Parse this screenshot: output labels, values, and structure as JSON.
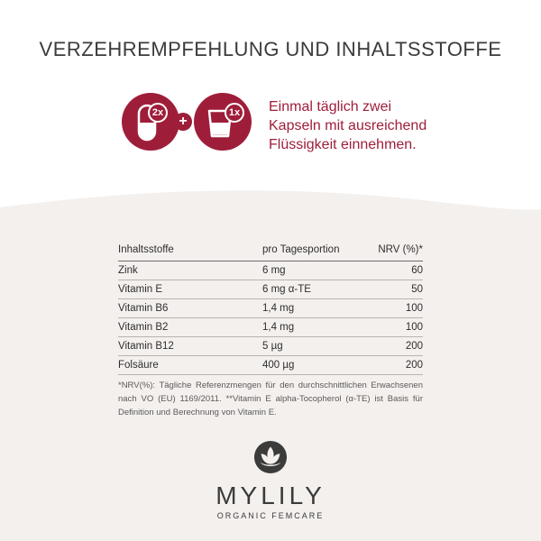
{
  "header": {
    "title": "VERZEHREMPFEHLUNG UND INHALTSSTOFFE"
  },
  "dosage": {
    "capsule_badge": "2x",
    "glass_badge": "1x",
    "plus": "+",
    "icons": [
      "capsule-icon",
      "glass-icon",
      "plus-icon"
    ],
    "instruction_lines": [
      "Einmal täglich zwei",
      "Kapseln mit ausreichend",
      "Flüssigkeit einnehmen."
    ]
  },
  "ingredients": {
    "headers": [
      "Inhaltsstoffe",
      "pro Tagesportion",
      "NRV (%)*"
    ],
    "rows": [
      [
        "Zink",
        "6 mg",
        "60"
      ],
      [
        "Vitamin E",
        "6 mg α-TE",
        "50"
      ],
      [
        "Vitamin B6",
        "1,4 mg",
        "100"
      ],
      [
        "Vitamin B2",
        "1,4 mg",
        "100"
      ],
      [
        "Vitamin B12",
        "5 µg",
        "200"
      ],
      [
        "Folsäure",
        "400 µg",
        "200"
      ]
    ]
  },
  "footnote": "*NRV(%): Tägliche Referenzmengen für den durchschnittlichen Erwachsenen nach VO (EU) 1169/2011. **Vitamin E alpha-Tocopherol (α-TE) ist Basis für Definition und Berechnung von Vitamin E.",
  "brand": {
    "name": "MYLILY",
    "tagline": "ORGANIC FEMCARE"
  },
  "colors": {
    "accent": "#9e1e3a",
    "background": "#f4f0ee",
    "text": "#3b3b3b"
  }
}
